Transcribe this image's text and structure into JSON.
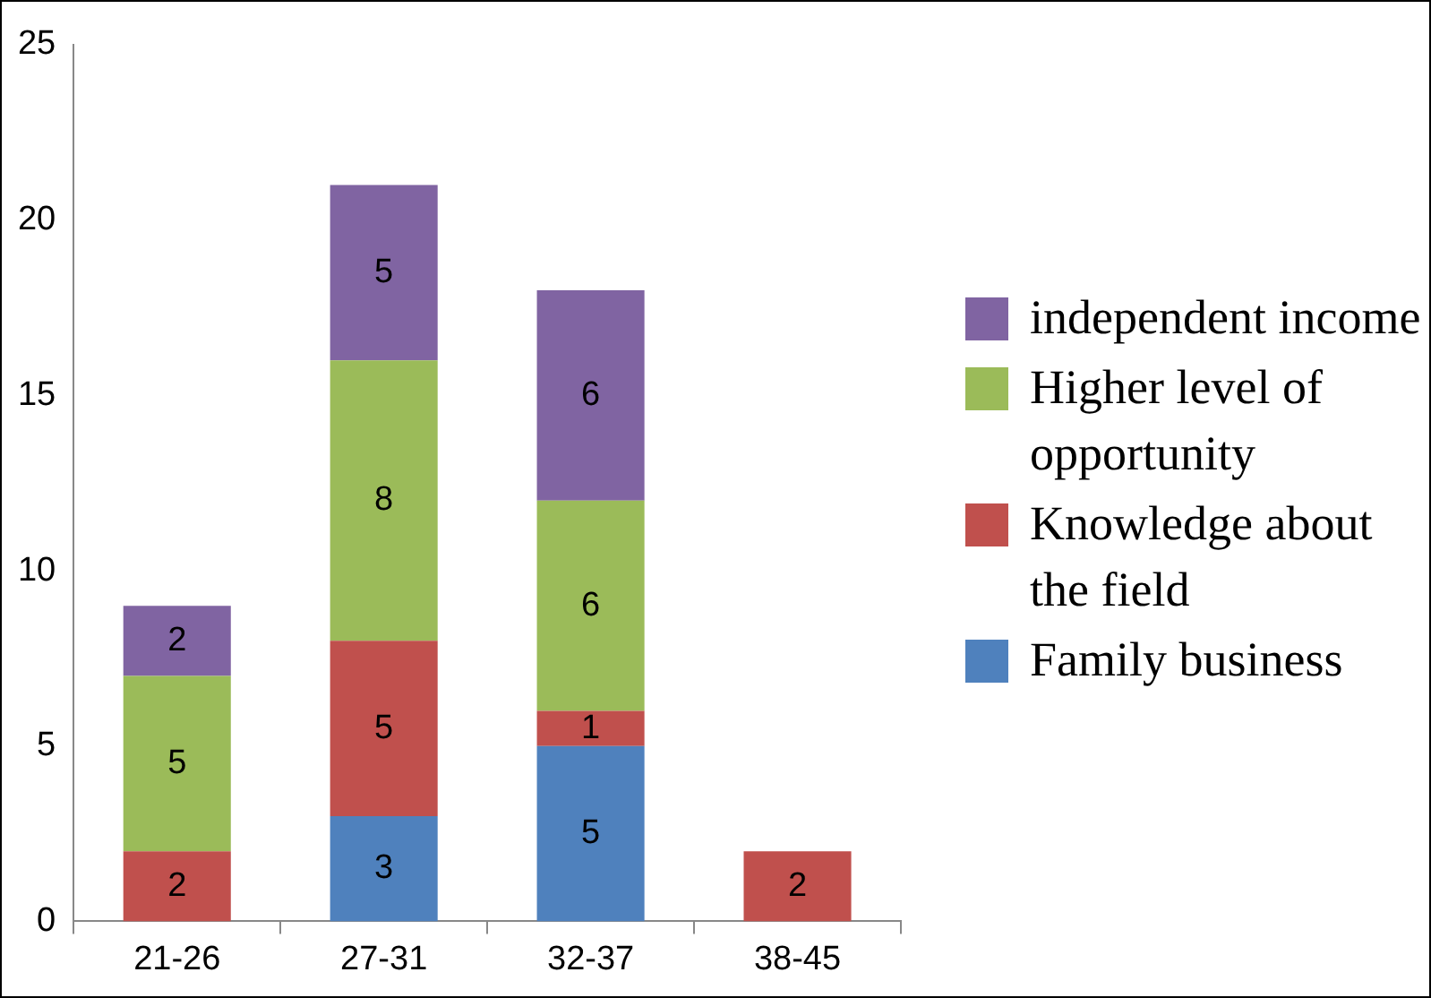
{
  "chart_data": {
    "type": "bar",
    "stacked": true,
    "categories": [
      "21-26",
      "27-31",
      "32-37",
      "38-45"
    ],
    "series": [
      {
        "name": "Family business",
        "color": "#4f81bd",
        "values": [
          null,
          3,
          5,
          null
        ]
      },
      {
        "name": "Knowledge about the field",
        "color": "#c0504d",
        "values": [
          2,
          5,
          1,
          2
        ]
      },
      {
        "name": "Higher level of opportunity",
        "color": "#9bbb59",
        "values": [
          5,
          8,
          6,
          null
        ]
      },
      {
        "name": "independent income",
        "color": "#8064a2",
        "values": [
          2,
          5,
          6,
          null
        ]
      }
    ],
    "ylim": [
      0,
      25
    ],
    "yticks": [
      0,
      5,
      10,
      15,
      20,
      25
    ],
    "grid": false,
    "legend": "right",
    "data_labels": true
  }
}
